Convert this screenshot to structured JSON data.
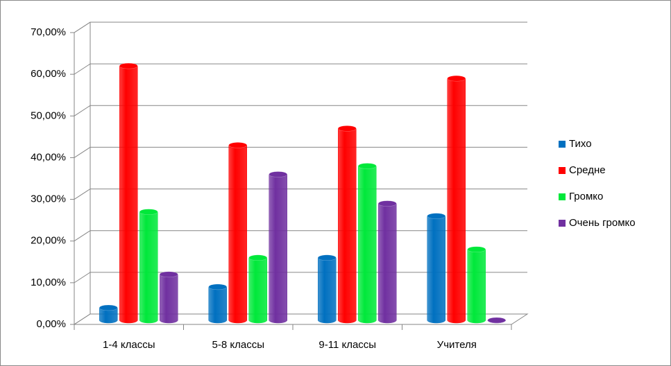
{
  "chart_data": {
    "type": "bar3d",
    "categories": [
      "1-4 классы",
      "5-8 классы",
      "9-11 классы",
      "Учителя"
    ],
    "series": [
      {
        "name": "Тихо",
        "color": "#0070c0",
        "values": [
          3,
          8,
          15,
          25
        ]
      },
      {
        "name": "Средне",
        "color": "#ff0000",
        "values": [
          61,
          42,
          46,
          58
        ]
      },
      {
        "name": "Громко",
        "color": "#00e83a",
        "values": [
          26,
          15,
          37,
          17
        ]
      },
      {
        "name": "Очень громко",
        "color": "#7030a0",
        "values": [
          11,
          35,
          28,
          0
        ]
      }
    ],
    "ylim": [
      0,
      70
    ],
    "yticks": [
      {
        "value": 0,
        "label": "0,00%"
      },
      {
        "value": 10,
        "label": "10,00%"
      },
      {
        "value": 20,
        "label": "20,00%"
      },
      {
        "value": 30,
        "label": "30,00%"
      },
      {
        "value": 40,
        "label": "40,00%"
      },
      {
        "value": 50,
        "label": "50,00%"
      },
      {
        "value": 60,
        "label": "60,00%"
      },
      {
        "value": 70,
        "label": "70,00%"
      }
    ],
    "grid": true,
    "legend": "right"
  }
}
